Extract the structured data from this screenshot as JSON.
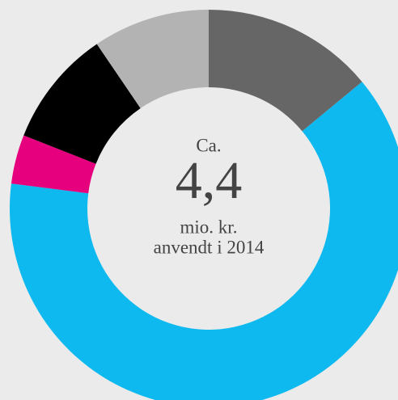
{
  "chart_data": {
    "type": "donut",
    "values": [
      14,
      63,
      4,
      9.5,
      9.5
    ],
    "colors": [
      "#666666",
      "#0db9ef",
      "#e6007e",
      "#000000",
      "#b3b3b3"
    ],
    "center_text": [
      "Ca.",
      "4,4",
      "mio. kr.",
      "anvendt i 2014"
    ]
  }
}
